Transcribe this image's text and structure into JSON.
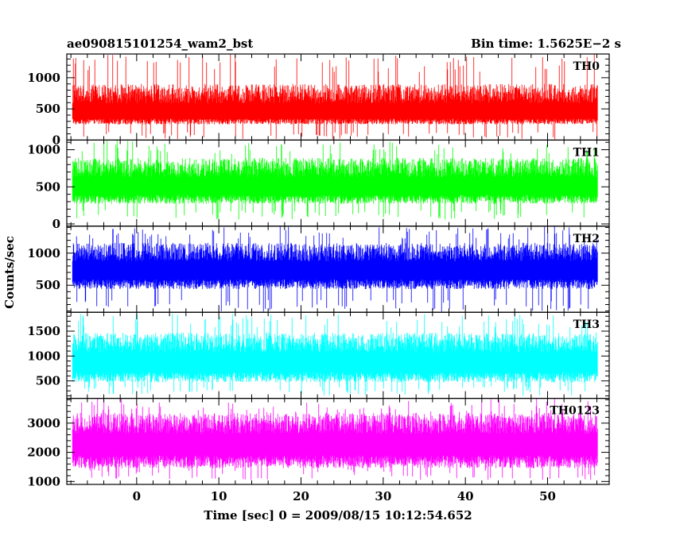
{
  "header": {
    "left": "ae090815101254_wam2_bst",
    "right": "Bin time: 1.5625E−2 s"
  },
  "chart_data": {
    "type": "line",
    "xlabel": "Time [sec] 0 = 2009/08/15 10:12:54.652",
    "ylabel": "Counts/sec",
    "xlim": [
      -8.5,
      57.5
    ],
    "x_ticks": [
      0,
      10,
      20,
      30,
      40,
      50
    ],
    "x_data_range": [
      -7.8,
      56.1
    ],
    "bin_time_s": 0.015625,
    "panels": [
      {
        "name": "TH0",
        "color": "#ff0000",
        "ylim": [
          0,
          1380
        ],
        "yticks": [
          0,
          500,
          1000
        ],
        "tick_labels": [
          "0",
          "500",
          "1000"
        ],
        "baseline": 420,
        "noise_low": 170,
        "noise_high": 480,
        "spike_max": 1380,
        "floor": 10
      },
      {
        "name": "TH1",
        "color": "#00ff00",
        "ylim": [
          -30,
          1130
        ],
        "yticks": [
          0,
          500,
          1000
        ],
        "tick_labels": [
          "0",
          "500",
          "1000"
        ],
        "baseline": 490,
        "noise_low": 220,
        "noise_high": 400,
        "spike_max": 1130,
        "floor": 60
      },
      {
        "name": "TH2",
        "color": "#0000ff",
        "ylim": [
          80,
          1420
        ],
        "yticks": [
          500,
          1000
        ],
        "tick_labels": [
          "500",
          "1000"
        ],
        "baseline": 720,
        "noise_low": 280,
        "noise_high": 440,
        "spike_max": 1420,
        "floor": 90
      },
      {
        "name": "TH3",
        "color": "#00ffff",
        "ylim": [
          150,
          1880
        ],
        "yticks": [
          500,
          1000,
          1500
        ],
        "tick_labels": [
          "500",
          "1000",
          "1500"
        ],
        "baseline": 850,
        "noise_low": 380,
        "noise_high": 620,
        "spike_max": 1880,
        "floor": 200
      },
      {
        "name": "TH0123",
        "color": "#ff00ff",
        "ylim": [
          900,
          3850
        ],
        "yticks": [
          1000,
          2000,
          3000
        ],
        "tick_labels": [
          "1000",
          "2000",
          "3000"
        ],
        "baseline": 2250,
        "noise_low": 800,
        "noise_high": 1100,
        "spike_max": 3850,
        "floor": 1050
      }
    ]
  }
}
